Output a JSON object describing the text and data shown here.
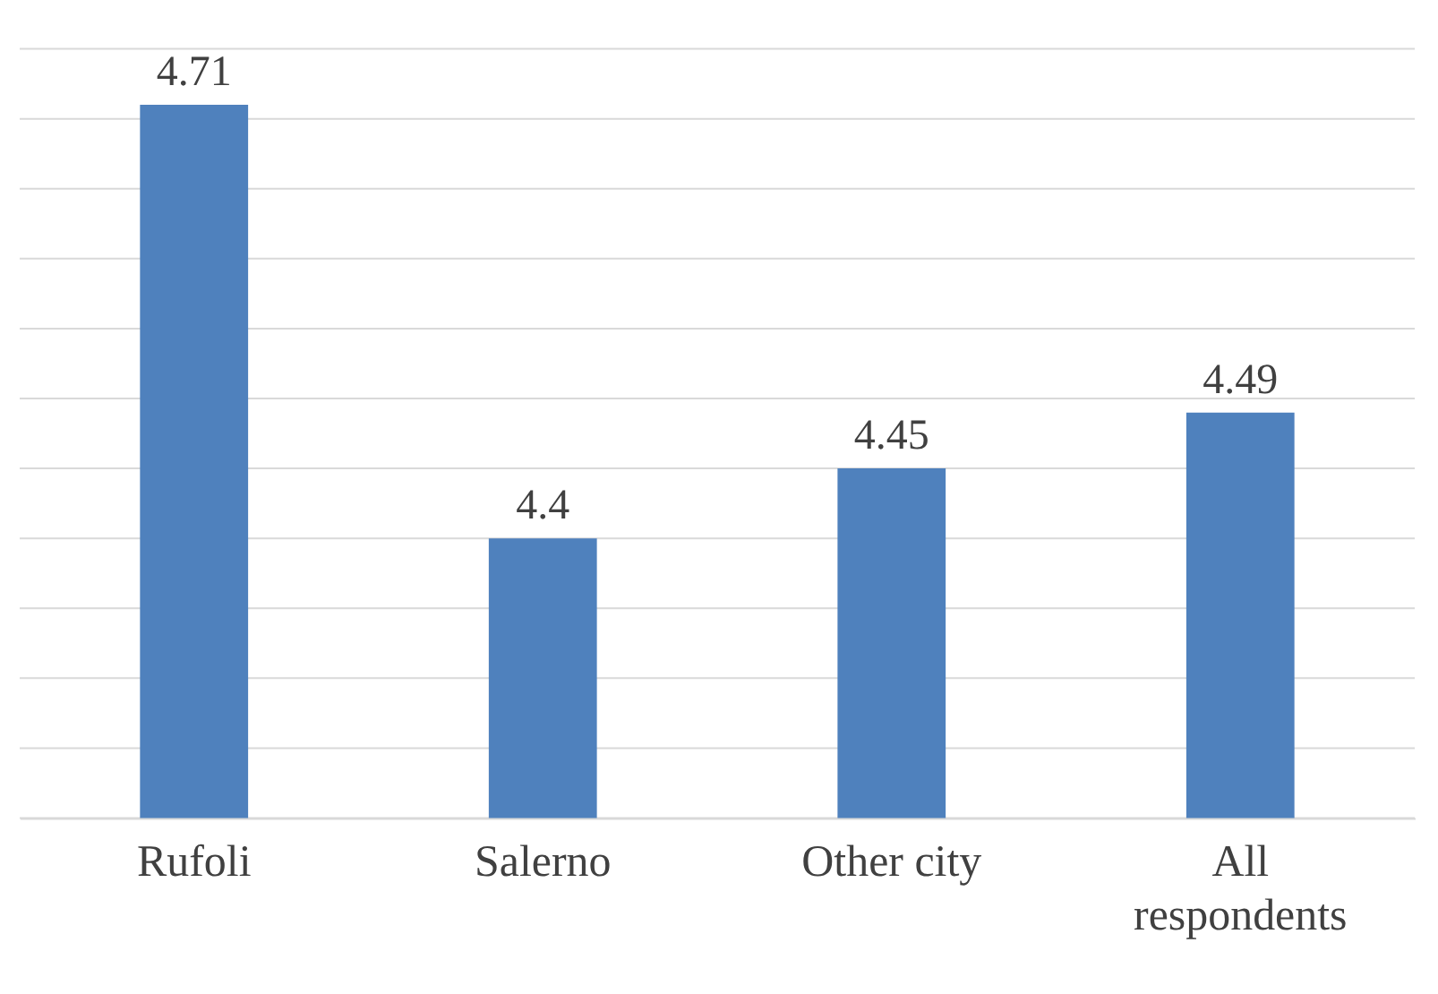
{
  "chart_data": {
    "type": "bar",
    "categories": [
      "Rufoli",
      "Salerno",
      "Other city",
      "All respondents"
    ],
    "values": [
      4.71,
      4.4,
      4.45,
      4.49
    ],
    "color": "#4f81bd",
    "data_labels": true,
    "ylim": [
      4.2,
      4.75
    ],
    "yticks": [
      {
        "value": 4.2,
        "label": null
      },
      {
        "value": 4.25,
        "label": null
      },
      {
        "value": 4.3,
        "label": null
      },
      {
        "value": 4.35,
        "label": null
      },
      {
        "value": 4.4,
        "label": null
      },
      {
        "value": 4.45,
        "label": null
      },
      {
        "value": 4.5,
        "label": null
      },
      {
        "value": 4.55,
        "label": null
      },
      {
        "value": 4.6,
        "label": null
      },
      {
        "value": 4.65,
        "label": null
      },
      {
        "value": 4.7,
        "label": null
      },
      {
        "value": 4.75,
        "label": null
      }
    ],
    "tick_labels": "x",
    "grid": "y"
  }
}
